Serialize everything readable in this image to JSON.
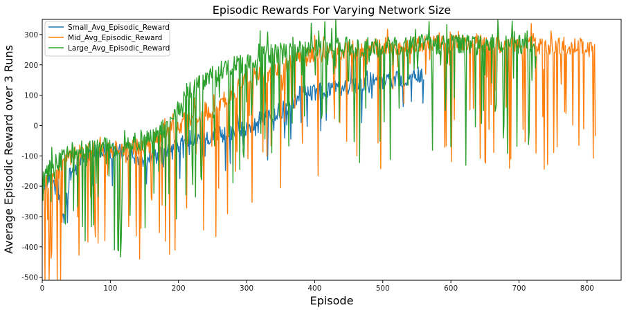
{
  "chart_data": {
    "type": "line",
    "title": "Episodic Rewards For Varying Network Size",
    "xlabel": "Episode",
    "ylabel": "Average Episodic Reward over 3 Runs",
    "xlim": [
      0,
      850
    ],
    "ylim": [
      -510,
      350
    ],
    "xticks": [
      0,
      100,
      200,
      300,
      400,
      500,
      600,
      700,
      800
    ],
    "yticks": [
      -500,
      -400,
      -300,
      -200,
      -100,
      0,
      100,
      200,
      300
    ],
    "grid": false,
    "legend_position": "top-left",
    "series": [
      {
        "name": "Small_Avg_Episodic_Reward",
        "color": "#1f77b4",
        "z": 1,
        "noise": 28,
        "dip_prob": 0.05,
        "dip_max": 140,
        "spike_prob": 0.02,
        "spike_max": 60,
        "anchors": [
          [
            0,
            -200
          ],
          [
            15,
            -180
          ],
          [
            25,
            -230
          ],
          [
            32,
            -330
          ],
          [
            40,
            -170
          ],
          [
            60,
            -100
          ],
          [
            100,
            -80
          ],
          [
            150,
            -110
          ],
          [
            180,
            -90
          ],
          [
            220,
            -40
          ],
          [
            260,
            -30
          ],
          [
            300,
            -10
          ],
          [
            320,
            20
          ],
          [
            340,
            40
          ],
          [
            360,
            60
          ],
          [
            380,
            110
          ],
          [
            400,
            110
          ],
          [
            420,
            120
          ],
          [
            450,
            130
          ],
          [
            480,
            140
          ],
          [
            510,
            150
          ],
          [
            540,
            160
          ],
          [
            560,
            170
          ]
        ]
      },
      {
        "name": "Mid_Avg_Episodic_Reward",
        "color": "#ff7f0e",
        "z": 2,
        "noise": 30,
        "dip_prob": 0.17,
        "dip_max": 420,
        "spike_prob": 0.04,
        "spike_max": 60,
        "anchors": [
          [
            0,
            -190
          ],
          [
            20,
            -180
          ],
          [
            30,
            -120
          ],
          [
            50,
            -90
          ],
          [
            100,
            -80
          ],
          [
            150,
            -70
          ],
          [
            180,
            -30
          ],
          [
            200,
            0
          ],
          [
            220,
            30
          ],
          [
            250,
            60
          ],
          [
            280,
            100
          ],
          [
            300,
            160
          ],
          [
            330,
            170
          ],
          [
            350,
            180
          ],
          [
            370,
            220
          ],
          [
            400,
            230
          ],
          [
            450,
            250
          ],
          [
            500,
            260
          ],
          [
            550,
            265
          ],
          [
            600,
            270
          ],
          [
            650,
            270
          ],
          [
            700,
            265
          ],
          [
            750,
            265
          ],
          [
            790,
            260
          ],
          [
            812,
            250
          ]
        ]
      },
      {
        "name": "Large_Avg_Episodic_Reward",
        "color": "#2ca02c",
        "z": 3,
        "noise": 35,
        "dip_prob": 0.18,
        "dip_max": 380,
        "spike_prob": 0.04,
        "spike_max": 70,
        "anchors": [
          [
            0,
            -170
          ],
          [
            20,
            -130
          ],
          [
            40,
            -90
          ],
          [
            80,
            -70
          ],
          [
            130,
            -60
          ],
          [
            160,
            -40
          ],
          [
            190,
            10
          ],
          [
            210,
            100
          ],
          [
            230,
            140
          ],
          [
            260,
            180
          ],
          [
            290,
            200
          ],
          [
            320,
            230
          ],
          [
            360,
            240
          ],
          [
            400,
            250
          ],
          [
            450,
            260
          ],
          [
            500,
            255
          ],
          [
            550,
            265
          ],
          [
            600,
            270
          ],
          [
            650,
            270
          ],
          [
            700,
            265
          ],
          [
            725,
            260
          ]
        ]
      }
    ]
  }
}
